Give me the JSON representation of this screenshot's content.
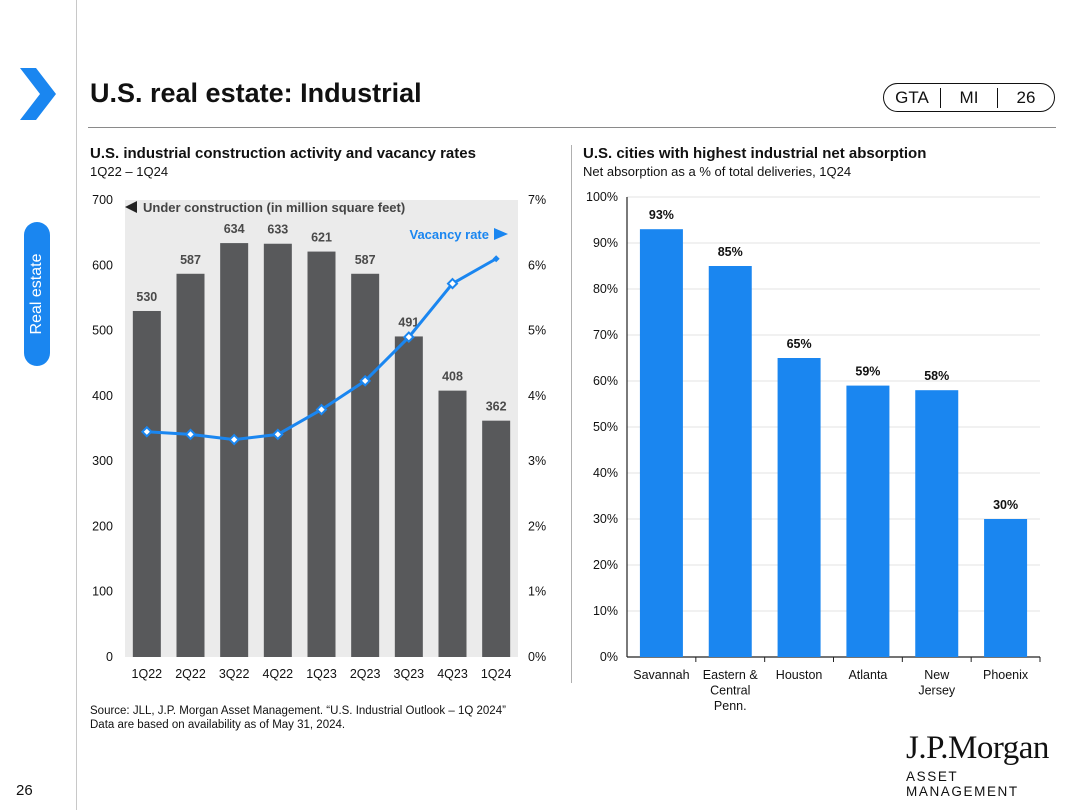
{
  "page": {
    "title": "U.S. real estate: Industrial",
    "section_tab": "Real estate",
    "page_number": "26",
    "badge": [
      "GTA",
      "MI",
      "26"
    ],
    "source": "Source: JLL, J.P. Morgan Asset Management. “U.S. Industrial Outlook – 1Q 2024”",
    "source2": "Data are based on availability as of May 31, 2024.",
    "logo_line1": "J.P.Morgan",
    "logo_line2": "ASSET MANAGEMENT"
  },
  "colors": {
    "bar_gray": "#58595b",
    "blue": "#1a86f0",
    "accent": "#1a86f0"
  },
  "chart_data": [
    {
      "type": "bar",
      "title": "U.S. industrial construction activity and vacancy rates",
      "subtitle": "1Q22 – 1Q24",
      "categories": [
        "1Q22",
        "2Q22",
        "3Q22",
        "4Q22",
        "1Q23",
        "2Q23",
        "3Q23",
        "4Q23",
        "1Q24"
      ],
      "series": [
        {
          "name": "Under construction (in million square feet)",
          "axis": "left",
          "type": "bar",
          "values": [
            530,
            587,
            634,
            633,
            621,
            587,
            491,
            408,
            362
          ]
        },
        {
          "name": "Vacancy rate",
          "axis": "right",
          "type": "line",
          "values": [
            3.45,
            3.41,
            3.33,
            3.41,
            3.79,
            4.23,
            4.9,
            5.72,
            6.1
          ]
        }
      ],
      "data_labels": [
        "530",
        "587",
        "634",
        "633",
        "621",
        "587",
        "491",
        "408",
        "362"
      ],
      "legend": {
        "left": "Under construction (in million square feet)",
        "right": "Vacancy rate"
      },
      "ylim_left": [
        0,
        700
      ],
      "yticks_left": [
        "0",
        "100",
        "200",
        "300",
        "400",
        "500",
        "600",
        "700"
      ],
      "ylim_right": [
        0,
        7
      ],
      "yticks_right": [
        "0%",
        "1%",
        "2%",
        "3%",
        "4%",
        "5%",
        "6%",
        "7%"
      ]
    },
    {
      "type": "bar",
      "title": "U.S. cities with highest industrial net absorption",
      "subtitle": "Net absorption as a % of total deliveries, 1Q24",
      "categories": [
        [
          "Savannah"
        ],
        [
          "Eastern &",
          "Central",
          "Penn."
        ],
        [
          "Houston"
        ],
        [
          "Atlanta"
        ],
        [
          "New",
          "Jersey"
        ],
        [
          "Phoenix"
        ]
      ],
      "values": [
        93,
        85,
        65,
        59,
        58,
        30
      ],
      "data_labels": [
        "93%",
        "85%",
        "65%",
        "59%",
        "58%",
        "30%"
      ],
      "ylim": [
        0,
        100
      ],
      "yticks": [
        "0%",
        "10%",
        "20%",
        "30%",
        "40%",
        "50%",
        "60%",
        "70%",
        "80%",
        "90%",
        "100%"
      ]
    }
  ]
}
